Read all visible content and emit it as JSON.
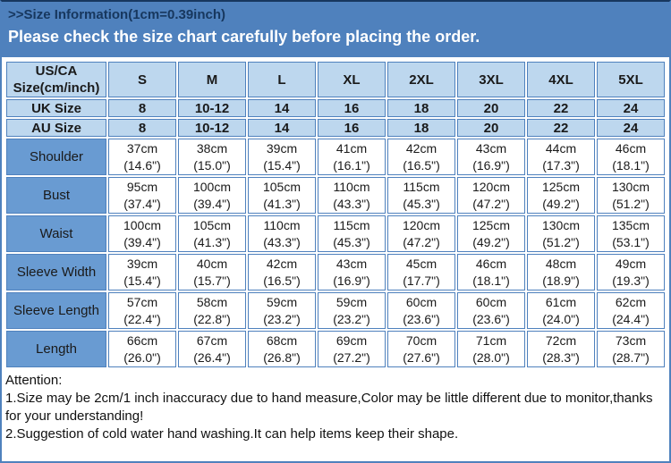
{
  "banner": {
    "title": ">>Size Information(1cm=0.39inch)",
    "subtitle": "Please check the size chart carefully before placing the order."
  },
  "colors": {
    "banner_bg": "#4f81bd",
    "banner_title_text": "#17375e",
    "banner_subtitle_text": "#ffffff",
    "header_cell_bg": "#bdd7ee",
    "label_cell_bg": "#699bd2",
    "grid_border": "#4f81bd",
    "data_text": "#3d3d3d"
  },
  "size_table": {
    "corner_header": "US/CA Size(cm/inch)",
    "size_columns": [
      "S",
      "M",
      "L",
      "XL",
      "2XL",
      "3XL",
      "4XL",
      "5XL"
    ],
    "size_rows": [
      {
        "label": "UK Size",
        "values": [
          "8",
          "10-12",
          "14",
          "16",
          "18",
          "20",
          "22",
          "24"
        ]
      },
      {
        "label": "AU Size",
        "values": [
          "8",
          "10-12",
          "14",
          "16",
          "18",
          "20",
          "22",
          "24"
        ]
      }
    ],
    "measurement_rows": [
      {
        "label": "Shoulder",
        "cm": [
          "37cm",
          "38cm",
          "39cm",
          "41cm",
          "42cm",
          "43cm",
          "44cm",
          "46cm"
        ],
        "inch": [
          "(14.6\")",
          "(15.0\")",
          "(15.4\")",
          "(16.1\")",
          "(16.5\")",
          "(16.9\")",
          "(17.3\")",
          "(18.1\")"
        ]
      },
      {
        "label": "Bust",
        "cm": [
          "95cm",
          "100cm",
          "105cm",
          "110cm",
          "115cm",
          "120cm",
          "125cm",
          "130cm"
        ],
        "inch": [
          "(37.4\")",
          "(39.4\")",
          "(41.3\")",
          "(43.3\")",
          "(45.3\")",
          "(47.2\")",
          "(49.2\")",
          "(51.2\")"
        ]
      },
      {
        "label": "Waist",
        "cm": [
          "100cm",
          "105cm",
          "110cm",
          "115cm",
          "120cm",
          "125cm",
          "130cm",
          "135cm"
        ],
        "inch": [
          "(39.4\")",
          "(41.3\")",
          "(43.3\")",
          "(45.3\")",
          "(47.2\")",
          "(49.2\")",
          "(51.2\")",
          "(53.1\")"
        ]
      },
      {
        "label": "Sleeve Width",
        "cm": [
          "39cm",
          "40cm",
          "42cm",
          "43cm",
          "45cm",
          "46cm",
          "48cm",
          "49cm"
        ],
        "inch": [
          "(15.4\")",
          "(15.7\")",
          "(16.5\")",
          "(16.9\")",
          "(17.7\")",
          "(18.1\")",
          "(18.9\")",
          "(19.3\")"
        ]
      },
      {
        "label": "Sleeve Length",
        "cm": [
          "57cm",
          "58cm",
          "59cm",
          "59cm",
          "60cm",
          "60cm",
          "61cm",
          "62cm"
        ],
        "inch": [
          "(22.4\")",
          "(22.8\")",
          "(23.2\")",
          "(23.2\")",
          "(23.6\")",
          "(23.6\")",
          "(24.0\")",
          "(24.4\")"
        ]
      },
      {
        "label": "Length",
        "cm": [
          "66cm",
          "67cm",
          "68cm",
          "69cm",
          "70cm",
          "71cm",
          "72cm",
          "73cm"
        ],
        "inch": [
          "(26.0\")",
          "(26.4\")",
          "(26.8\")",
          "(27.2\")",
          "(27.6\")",
          "(28.0\")",
          "(28.3\")",
          "(28.7\")"
        ]
      }
    ]
  },
  "attention": {
    "heading": "Attention:",
    "lines": [
      "1.Size may be 2cm/1 inch inaccuracy due to hand measure,Color may be little different due to monitor,thanks for your understanding!",
      "2.Suggestion of cold water hand washing.It can help items keep their shape."
    ]
  }
}
